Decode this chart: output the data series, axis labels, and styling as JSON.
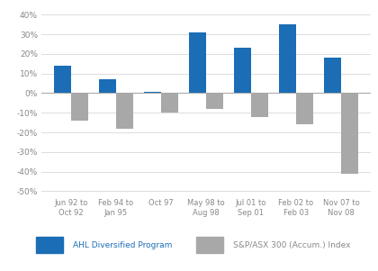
{
  "categories": [
    "Jun 92 to\nOct 92",
    "Feb 94 to\nJan 95",
    "Oct 97",
    "May 98 to\nAug 98",
    "Jul 01 to\nSep 01",
    "Feb 02 to\nFeb 03",
    "Nov 07 to\nNov 08"
  ],
  "ahl_values": [
    14.0,
    7.0,
    0.5,
    31.0,
    23.0,
    35.0,
    18.0
  ],
  "asx_values": [
    -14.0,
    -18.0,
    -10.0,
    -8.0,
    -12.0,
    -16.0,
    -41.0
  ],
  "ahl_color": "#1b6db5",
  "asx_color": "#a8a8a8",
  "background_color": "#ffffff",
  "ylim": [
    -52,
    42
  ],
  "yticks": [
    -50,
    -40,
    -30,
    -20,
    -10,
    0,
    10,
    20,
    30,
    40
  ],
  "ytick_labels": [
    "-50%",
    "-40%",
    "-30%",
    "-20%",
    "-10%",
    "0%",
    "10%",
    "20%",
    "30%",
    "40%"
  ],
  "ahl_label": "AHL Diversified Program",
  "asx_label": "S&P/ASX 300 (Accum.) Index",
  "bar_width": 0.38,
  "grid_color": "#dddddd",
  "legend_ahl_color": "#1b6db5",
  "legend_asx_color": "#a8a8a8",
  "tick_label_color": "#888888",
  "legend_ahl_text_color": "#1b6db5",
  "legend_asx_text_color": "#888888"
}
